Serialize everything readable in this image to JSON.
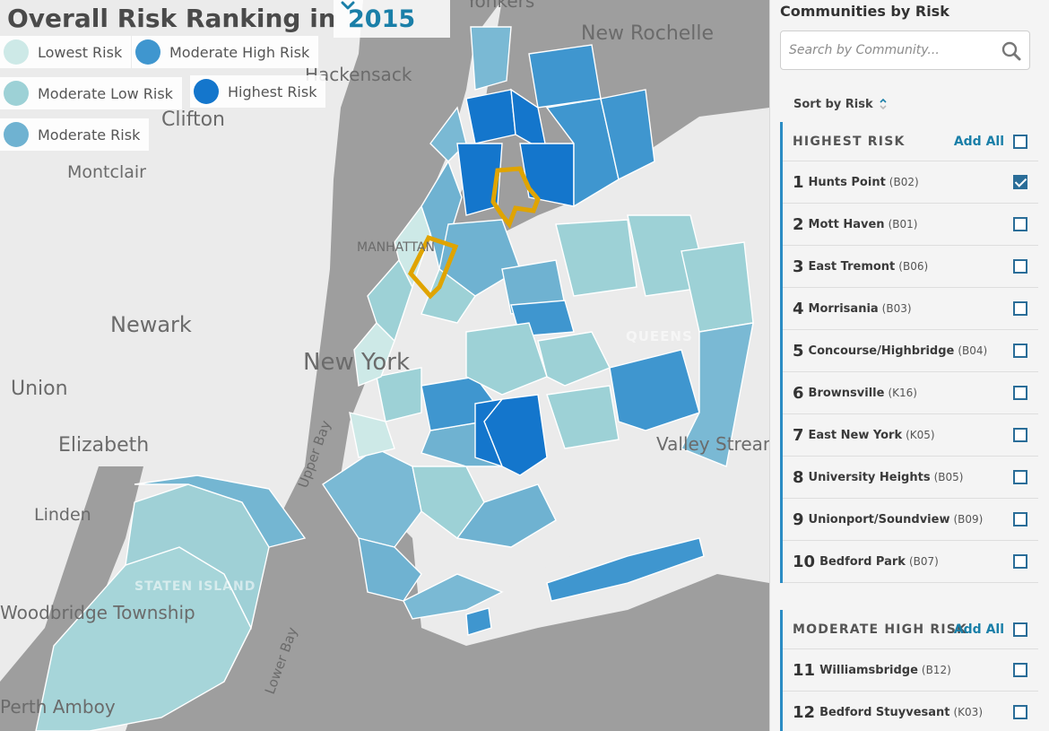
{
  "header": {
    "title": "Overall Risk Ranking in",
    "year": "2015"
  },
  "legend": [
    {
      "label": "Lowest Risk",
      "color": "#cde9e7"
    },
    {
      "label": "Moderate High Risk",
      "color": "#3f96cf"
    },
    {
      "label": "Moderate Low Risk",
      "color": "#9dd1d6"
    },
    {
      "label": "Highest Risk",
      "color": "#1476cc"
    },
    {
      "label": "Moderate Risk",
      "color": "#6fb2d1"
    }
  ],
  "map": {
    "places": [
      "Yonkers",
      "New Rochelle",
      "Hackensack",
      "Clifton",
      "Montclair",
      "MANHATTAN",
      "Newark",
      "New York",
      "QUEENS",
      "Union",
      "Elizabeth",
      "Upper Bay",
      "Valley Stream",
      "Linden",
      "STATEN ISLAND",
      "Woodbridge Township",
      "Lower Bay",
      "Perth Amboy"
    ],
    "selected_outline_color": "#e0a400"
  },
  "sidebar": {
    "title": "Communities by Risk",
    "search_placeholder": "Search by Community...",
    "sort_label": "Sort by Risk",
    "add_all_label": "Add All",
    "groups": [
      {
        "title": "HIGHEST RISK",
        "items": [
          {
            "rank": "1",
            "name": "Hunts Point",
            "code": "(B02)",
            "checked": true
          },
          {
            "rank": "2",
            "name": "Mott Haven",
            "code": "(B01)",
            "checked": false
          },
          {
            "rank": "3",
            "name": "East Tremont",
            "code": "(B06)",
            "checked": false
          },
          {
            "rank": "4",
            "name": "Morrisania",
            "code": "(B03)",
            "checked": false
          },
          {
            "rank": "5",
            "name": "Concourse/Highbridge",
            "code": "(B04)",
            "checked": false
          },
          {
            "rank": "6",
            "name": "Brownsville",
            "code": "(K16)",
            "checked": false
          },
          {
            "rank": "7",
            "name": "East New York",
            "code": "(K05)",
            "checked": false
          },
          {
            "rank": "8",
            "name": "University Heights",
            "code": "(B05)",
            "checked": false
          },
          {
            "rank": "9",
            "name": "Unionport/Soundview",
            "code": "(B09)",
            "checked": false
          },
          {
            "rank": "10",
            "name": "Bedford Park",
            "code": "(B07)",
            "checked": false
          }
        ]
      },
      {
        "title": "MODERATE HIGH RISK",
        "items": [
          {
            "rank": "11",
            "name": "Williamsbridge",
            "code": "(B12)",
            "checked": false
          },
          {
            "rank": "12",
            "name": "Bedford Stuyvesant",
            "code": "(K03)",
            "checked": false
          }
        ]
      }
    ]
  }
}
